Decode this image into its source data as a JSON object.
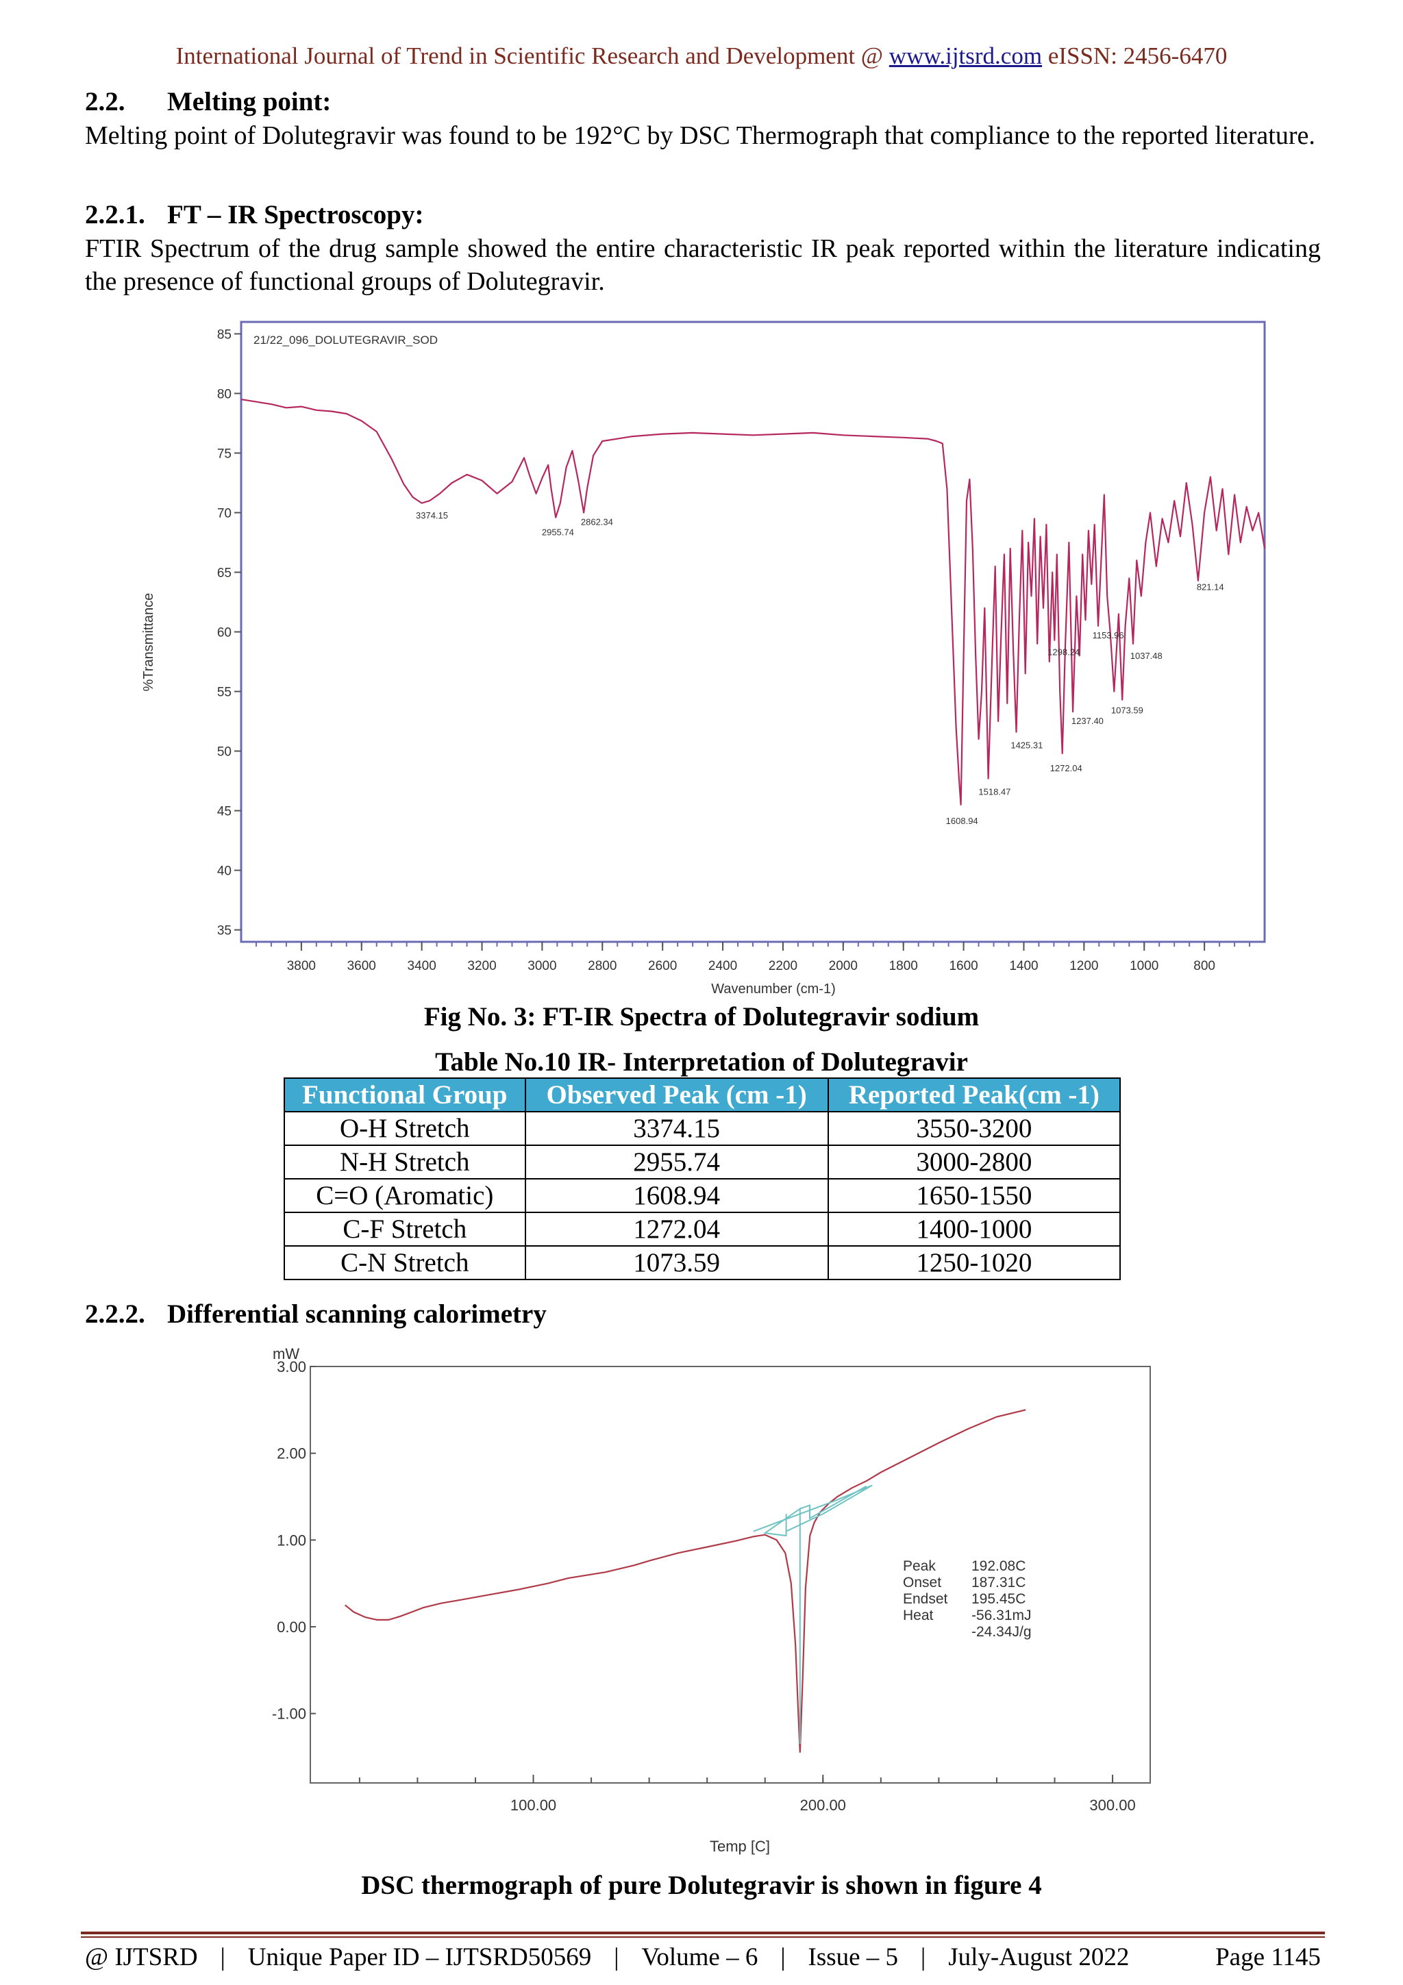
{
  "header": {
    "journal": "International Journal of Trend in Scientific Research and Development @ ",
    "url": "www.ijtsrd.com",
    "issn": " eISSN: 2456-6470"
  },
  "section_melting": {
    "num": "2.2.",
    "title": "Melting point:",
    "text": "Melting point of Dolutegravir was found to be 192°C by DSC Thermograph that compliance to the reported literature."
  },
  "section_ftir": {
    "num": "2.2.1.",
    "title": "FT – IR Spectroscopy:",
    "text": "FTIR Spectrum of the drug sample showed the entire characteristic IR peak reported within the literature indicating the presence of functional groups of Dolutegravir."
  },
  "fig3_caption": "Fig No. 3: FT-IR Spectra of Dolutegravir sodium",
  "table10": {
    "caption": "Table No.10 IR- Interpretation of Dolutegravir",
    "headers": [
      "Functional Group",
      "Observed Peak (cm -1)",
      "Reported Peak(cm -1)"
    ],
    "rows": [
      [
        "O-H Stretch",
        "3374.15",
        "3550-3200"
      ],
      [
        "N-H Stretch",
        "2955.74",
        "3000-2800"
      ],
      [
        "C=O (Aromatic)",
        "1608.94",
        "1650-1550"
      ],
      [
        "C-F Stretch",
        "1272.04",
        "1400-1000"
      ],
      [
        "C-N Stretch",
        "1073.59",
        "1250-1020"
      ]
    ]
  },
  "section_dsc": {
    "num": "2.2.2.",
    "title": "Differential scanning calorimetry"
  },
  "dsc_caption": "DSC thermograph of pure Dolutegravir is shown in figure 4",
  "footer": {
    "left": "@ IJTSRD",
    "paper_id": "Unique Paper ID – IJTSRD50569",
    "volume": "Volume – 6",
    "issue": "Issue – 5",
    "date": "July-August 2022",
    "page": "Page 1145"
  },
  "chart_data": [
    {
      "type": "line",
      "title": "21/22_096_DOLUTEGRAVIR_SOD",
      "xlabel": "Wavenumber (cm-1)",
      "ylabel": "%Transmittance",
      "xlim": [
        4000,
        600
      ],
      "ylim": [
        34,
        86
      ],
      "x_reversed": true,
      "grid": false,
      "xticks": [
        3800,
        3600,
        3400,
        3200,
        3000,
        2800,
        2600,
        2400,
        2200,
        2000,
        1800,
        1600,
        1400,
        1200,
        1000,
        800
      ],
      "yticks": [
        35,
        40,
        45,
        50,
        55,
        60,
        65,
        70,
        75,
        80,
        85
      ],
      "color": "#b5285f",
      "series": [
        {
          "x": [
            4000,
            3950,
            3900,
            3850,
            3800,
            3750,
            3700,
            3650,
            3600,
            3550,
            3500,
            3460,
            3430,
            3400,
            3374,
            3340,
            3300,
            3250,
            3200,
            3150,
            3100,
            3060,
            3040,
            3020,
            3000,
            2980,
            2970,
            2955,
            2940,
            2920,
            2900,
            2880,
            2862,
            2850,
            2830,
            2800,
            2750,
            2700,
            2600,
            2500,
            2400,
            2300,
            2200,
            2100,
            2000,
            1900,
            1800,
            1720,
            1690,
            1670,
            1655,
            1640,
            1625,
            1615,
            1609,
            1600,
            1590,
            1580,
            1570,
            1560,
            1550,
            1540,
            1530,
            1518,
            1505,
            1495,
            1485,
            1475,
            1465,
            1455,
            1445,
            1435,
            1425,
            1415,
            1405,
            1395,
            1385,
            1375,
            1365,
            1355,
            1345,
            1335,
            1325,
            1315,
            1305,
            1298,
            1290,
            1280,
            1272,
            1262,
            1250,
            1237,
            1225,
            1215,
            1205,
            1195,
            1185,
            1175,
            1165,
            1153,
            1143,
            1133,
            1123,
            1113,
            1100,
            1085,
            1073,
            1063,
            1050,
            1037,
            1025,
            1010,
            995,
            980,
            960,
            940,
            920,
            900,
            880,
            860,
            840,
            821,
            800,
            780,
            760,
            740,
            720,
            700,
            680,
            660,
            640,
            620,
            600
          ],
          "y": [
            79.5,
            79.3,
            79.1,
            78.8,
            78.9,
            78.6,
            78.5,
            78.3,
            77.7,
            76.8,
            74.5,
            72.4,
            71.3,
            70.8,
            71.0,
            71.6,
            72.5,
            73.2,
            72.7,
            71.6,
            72.6,
            74.6,
            73.0,
            71.6,
            72.9,
            74.0,
            72.0,
            69.6,
            70.8,
            73.8,
            75.2,
            72.7,
            70.0,
            72.1,
            74.8,
            76.0,
            76.2,
            76.4,
            76.6,
            76.7,
            76.6,
            76.5,
            76.6,
            76.7,
            76.5,
            76.4,
            76.3,
            76.2,
            76.0,
            75.8,
            72.0,
            62.0,
            52.0,
            47.6,
            45.5,
            58.0,
            71.0,
            72.8,
            67.0,
            58.0,
            51.0,
            55.0,
            62.0,
            47.7,
            58.0,
            65.5,
            52.5,
            60.0,
            66.5,
            54.0,
            67.0,
            58.5,
            51.6,
            61.0,
            68.5,
            56.5,
            67.5,
            63.0,
            69.5,
            59.0,
            68.0,
            62.0,
            69.0,
            57.5,
            65.0,
            59.3,
            66.5,
            55.0,
            49.8,
            59.0,
            67.5,
            53.3,
            63.0,
            58.0,
            66.5,
            61.0,
            68.5,
            64.0,
            69.0,
            60.5,
            66.0,
            71.5,
            63.0,
            60.0,
            55.0,
            61.5,
            54.3,
            60.5,
            64.5,
            59.0,
            66.0,
            63.0,
            67.5,
            70.0,
            65.5,
            69.5,
            67.5,
            71.0,
            68.0,
            72.5,
            69.0,
            64.3,
            70.0,
            73.0,
            68.5,
            72.0,
            66.5,
            71.5,
            67.5,
            70.5,
            68.5,
            70.0,
            67.0
          ]
        }
      ],
      "annotations": [
        {
          "label": "3374.15",
          "x": 3374.15,
          "y": 71.0
        },
        {
          "label": "2955.74",
          "x": 2955.74,
          "y": 69.6
        },
        {
          "label": "2862.34",
          "x": 2862.34,
          "y": 70.0
        },
        {
          "label": "1608.94",
          "x": 1608.94,
          "y": 45.5
        },
        {
          "label": "1518.47",
          "x": 1518.47,
          "y": 47.7
        },
        {
          "label": "1425.31",
          "x": 1425.31,
          "y": 51.6
        },
        {
          "label": "1298.24",
          "x": 1298.24,
          "y": 59.3
        },
        {
          "label": "1272.04",
          "x": 1272.04,
          "y": 49.8
        },
        {
          "label": "1237.40",
          "x": 1237.4,
          "y": 53.3
        },
        {
          "label": "1153.96",
          "x": 1153.96,
          "y": 60.5
        },
        {
          "label": "1073.59",
          "x": 1073.59,
          "y": 54.3
        },
        {
          "label": "1037.48",
          "x": 1037.48,
          "y": 59.0
        },
        {
          "label": "821.14",
          "x": 821.14,
          "y": 64.3
        }
      ]
    },
    {
      "type": "line",
      "title": "",
      "xlabel": "Temp [C]",
      "ylabel": "mW",
      "xlim": [
        23,
        313
      ],
      "ylim": [
        -1.8,
        3.0
      ],
      "xticks": [
        100,
        200,
        300
      ],
      "xtick_labels": [
        "100.00",
        "200.00",
        "300.00"
      ],
      "yticks": [
        3,
        2,
        1,
        0,
        -1
      ],
      "ytick_labels": [
        "3.00",
        "2.00",
        "1.00",
        "0.00",
        "-1.00"
      ],
      "grid": false,
      "series": [
        {
          "name": "",
          "color": "#b03a48",
          "x": [
            35,
            38,
            42,
            46,
            50,
            54,
            58,
            62,
            68,
            75,
            85,
            95,
            105,
            112,
            125,
            135,
            140,
            150,
            160,
            170,
            176,
            180,
            184,
            187,
            189,
            190.5,
            191.5,
            192.08,
            193,
            194,
            195.5,
            197,
            199,
            202,
            205,
            210,
            215,
            220,
            230,
            240,
            250,
            260,
            270
          ],
          "y": [
            0.25,
            0.17,
            0.11,
            0.08,
            0.08,
            0.12,
            0.17,
            0.22,
            0.27,
            0.31,
            0.37,
            0.43,
            0.5,
            0.56,
            0.63,
            0.71,
            0.76,
            0.85,
            0.92,
            0.99,
            1.04,
            1.06,
            1.0,
            0.85,
            0.5,
            -0.2,
            -1.0,
            -1.45,
            -0.6,
            0.45,
            1.05,
            1.2,
            1.32,
            1.42,
            1.5,
            1.6,
            1.68,
            1.78,
            1.95,
            2.12,
            2.28,
            2.42,
            2.5
          ]
        },
        {
          "name": "",
          "color": "#6fc3c3",
          "x": [
            176,
            204,
            217,
            200,
            187.3,
            187.3,
            187.3,
            180,
            192.08,
            192.08,
            192.08,
            195.45,
            195.45,
            195.45,
            215
          ],
          "y": [
            1.1,
            1.45,
            1.63,
            1.3,
            1.1,
            1.3,
            1.05,
            1.08,
            1.36,
            -1.35,
            1.36,
            1.4,
            1.4,
            1.25,
            1.62
          ]
        }
      ],
      "annotation_labels": [
        "Peak",
        "Onset",
        "Endset",
        "Heat",
        ""
      ],
      "annotation_values": [
        "192.08C",
        "187.31C",
        "195.45C",
        "-56.31mJ",
        "-24.34J/g"
      ]
    }
  ]
}
